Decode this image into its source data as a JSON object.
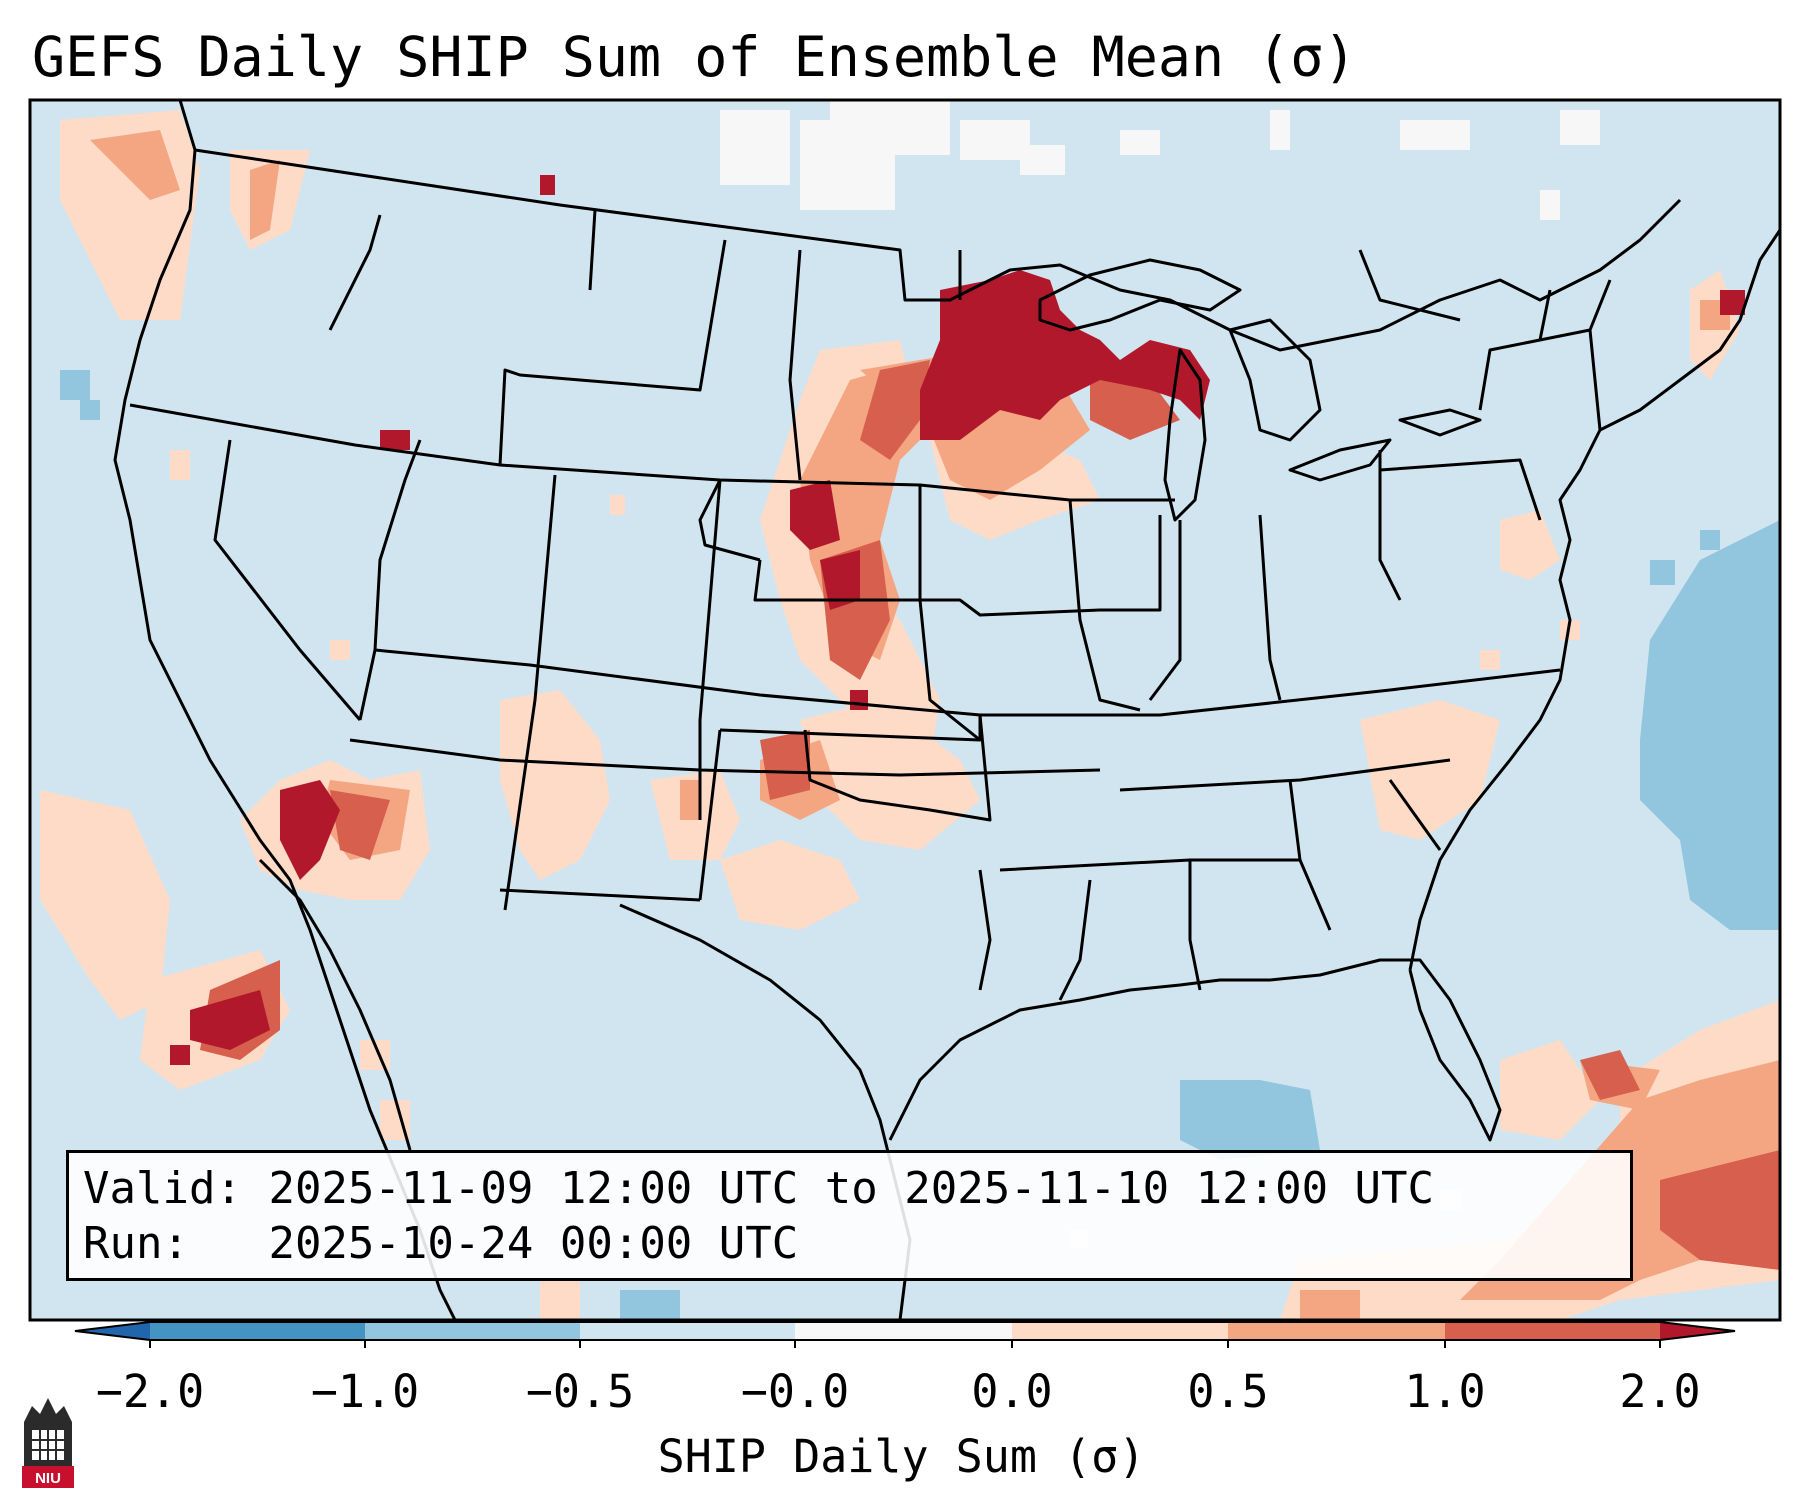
{
  "title": "GEFS Daily SHIP Sum of Ensemble Mean (σ)",
  "info": {
    "valid_label": "Valid:",
    "valid_value": "2025-11-09 12:00 UTC to 2025-11-10 12:00 UTC",
    "run_label": "Run:",
    "run_value": "2025-10-24 00:00 UTC"
  },
  "colorbar": {
    "label": "SHIP Daily Sum (σ)",
    "ticks": [
      "−2.0",
      "−1.0",
      "−0.5",
      "−0.0",
      "0.0",
      "0.5",
      "1.0",
      "2.0"
    ],
    "bins": [
      {
        "range": [
          -2.0,
          -1.0
        ],
        "color": "#4393c3"
      },
      {
        "range": [
          -1.0,
          -0.5
        ],
        "color": "#92c5de"
      },
      {
        "range": [
          -0.5,
          0.0
        ],
        "color": "#d1e5f0"
      },
      {
        "range": [
          0.0,
          0.0
        ],
        "color": "#f7f7f7"
      },
      {
        "range": [
          0.0,
          0.5
        ],
        "color": "#fddbc7"
      },
      {
        "range": [
          0.5,
          1.0
        ],
        "color": "#f4a582"
      },
      {
        "range": [
          1.0,
          2.0
        ],
        "color": "#d6604d"
      }
    ],
    "extend_low_color": "#2166ac",
    "extend_high_color": "#b2182b"
  },
  "map": {
    "background_color": "#d1e5f0",
    "state_line_color": "#000000"
  },
  "logo": {
    "text": "NIU",
    "colors": {
      "tower": "#2b2b2b",
      "band": "#c8102e"
    }
  }
}
